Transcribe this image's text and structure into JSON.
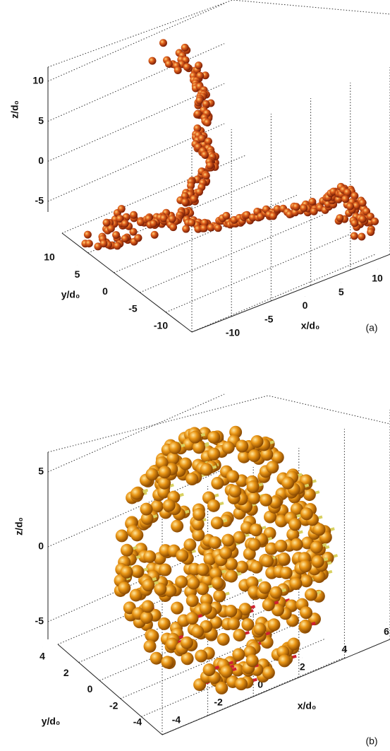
{
  "charts": [
    {
      "type": "scatter3d",
      "tag": "(a)",
      "xlabel": "x/d₀",
      "ylabel": "y/d₀",
      "zlabel": "z/d₀",
      "xticks": [
        -10,
        -5,
        0,
        5,
        10
      ],
      "yticks": [
        10,
        5,
        0,
        -5,
        -10
      ],
      "zticks": [
        10,
        5,
        0,
        -5
      ]
    },
    {
      "type": "scatter3d",
      "tag": "(b)",
      "xlabel": "x/d₀",
      "ylabel": "y/d₀",
      "zlabel": "z/d₀",
      "xticks": [
        -4,
        -2,
        0,
        2,
        4,
        6
      ],
      "yticks": [
        4,
        2,
        0,
        -2,
        -4
      ],
      "zticks": [
        5,
        0,
        -5
      ]
    }
  ]
}
